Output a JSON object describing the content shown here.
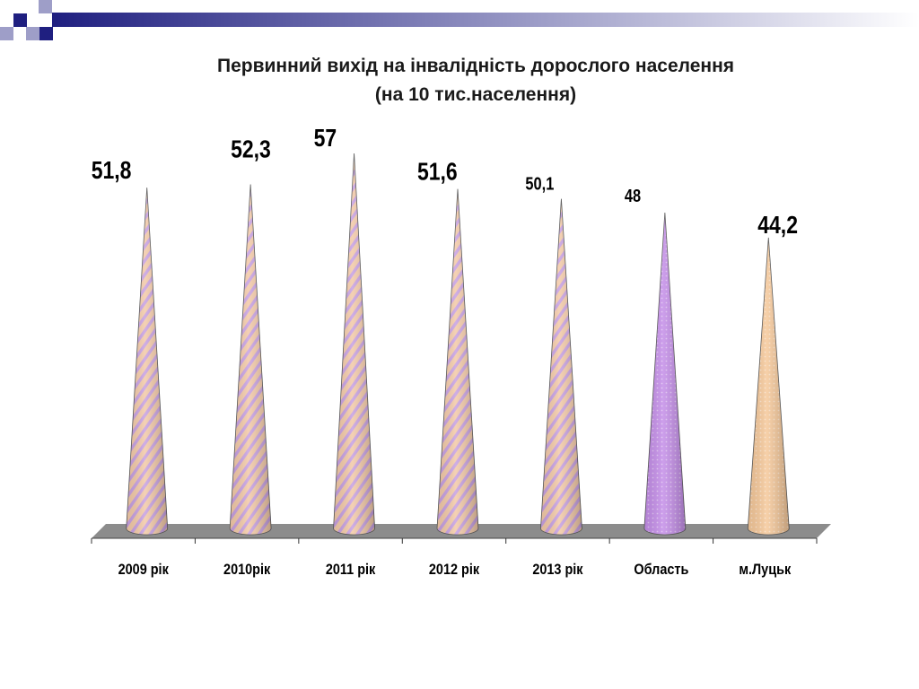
{
  "slide": {
    "title_line1": "Первинний вихід на інвалідність дорослого населення",
    "title_line2": "(на 10 тис.населення)"
  },
  "colors": {
    "header_square_dark": "#1f1f80",
    "header_square_light": "#9e9ec8",
    "header_band_start": "#1f1f80",
    "header_band_end": "#ffffff",
    "cone_years_base": "#f2c9a8",
    "cone_years_stripe": "#c7a0e0",
    "cone_oblast": "#c48ee8",
    "cone_lutsk": "#f5c89a",
    "floor": "#8c8c8c"
  },
  "chart_data": {
    "type": "bar",
    "categories": [
      "2009 рік",
      "2010рік",
      "2011 рік",
      "2012 рік",
      "2013 рік",
      "Область",
      "м.Луцьк"
    ],
    "values": [
      51.8,
      52.3,
      57,
      51.6,
      50.1,
      48,
      44.2
    ],
    "value_labels": [
      "51,8",
      "52,3",
      "57",
      "51,6",
      "50,1",
      "48",
      "44,2"
    ],
    "title": "Первинний вихід на інвалідність дорослого населення (на 10 тис.населення)",
    "xlabel": "",
    "ylabel": "",
    "ylim": [
      0,
      60
    ],
    "grid": false,
    "legend": "none"
  }
}
